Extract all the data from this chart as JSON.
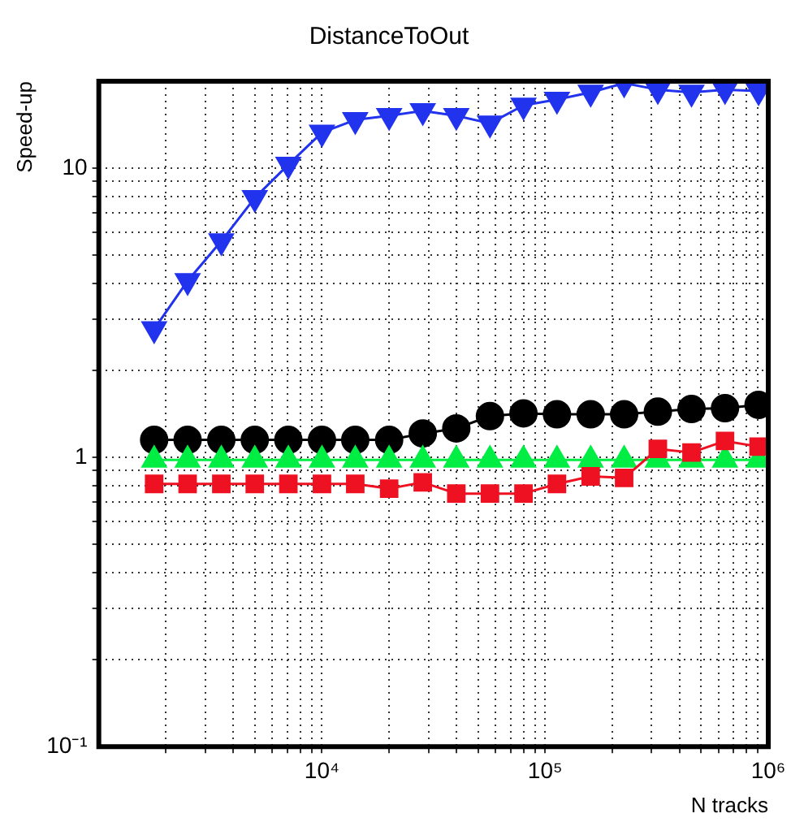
{
  "chart_data": {
    "type": "line",
    "title": "DistanceToOut",
    "xlabel": "N tracks",
    "ylabel": "Speed-up",
    "log": "xy",
    "grid": true,
    "line_style": "solid",
    "legend": false,
    "xlim": [
      1000,
      1000000
    ],
    "xticks": [
      {
        "value": 2000,
        "label": null
      },
      {
        "value": 3000,
        "label": null
      },
      {
        "value": 4000,
        "label": null
      },
      {
        "value": 5000,
        "label": null
      },
      {
        "value": 6000,
        "label": null
      },
      {
        "value": 7000,
        "label": null
      },
      {
        "value": 8000,
        "label": null
      },
      {
        "value": 9000,
        "label": null
      },
      {
        "value": 10000,
        "label": "10⁴"
      },
      {
        "value": 20000,
        "label": null
      },
      {
        "value": 30000,
        "label": null
      },
      {
        "value": 40000,
        "label": null
      },
      {
        "value": 50000,
        "label": null
      },
      {
        "value": 60000,
        "label": null
      },
      {
        "value": 70000,
        "label": null
      },
      {
        "value": 80000,
        "label": null
      },
      {
        "value": 90000,
        "label": null
      },
      {
        "value": 100000,
        "label": "10⁵"
      },
      {
        "value": 200000,
        "label": null
      },
      {
        "value": 300000,
        "label": null
      },
      {
        "value": 400000,
        "label": null
      },
      {
        "value": 500000,
        "label": null
      },
      {
        "value": 600000,
        "label": null
      },
      {
        "value": 700000,
        "label": null
      },
      {
        "value": 800000,
        "label": null
      },
      {
        "value": 900000,
        "label": null
      },
      {
        "value": 1000000,
        "label": "10⁶"
      }
    ],
    "ylim": [
      0.1,
      20
    ],
    "yticks": [
      {
        "value": 0.1,
        "label": "10⁻¹"
      },
      {
        "value": 0.2,
        "label": null
      },
      {
        "value": 0.3,
        "label": null
      },
      {
        "value": 0.4,
        "label": null
      },
      {
        "value": 0.5,
        "label": null
      },
      {
        "value": 0.6,
        "label": null
      },
      {
        "value": 0.7,
        "label": null
      },
      {
        "value": 0.8,
        "label": null
      },
      {
        "value": 0.9,
        "label": null
      },
      {
        "value": 1,
        "label": "1"
      },
      {
        "value": 2,
        "label": null
      },
      {
        "value": 3,
        "label": null
      },
      {
        "value": 4,
        "label": null
      },
      {
        "value": 5,
        "label": null
      },
      {
        "value": 6,
        "label": null
      },
      {
        "value": 7,
        "label": null
      },
      {
        "value": 8,
        "label": null
      },
      {
        "value": 9,
        "label": null
      },
      {
        "value": 10,
        "label": "10"
      }
    ],
    "x": [
      1770,
      2500,
      3540,
      5000,
      7070,
      10000,
      14100,
      20000,
      28300,
      40000,
      56600,
      80000,
      113000,
      160000,
      226000,
      320000,
      453000,
      640000,
      905000
    ],
    "series": [
      {
        "color": "#2233ee",
        "marker": "triangle-down",
        "values": [
          2.78,
          4.08,
          5.6,
          7.9,
          10.3,
          13.3,
          14.7,
          15.2,
          15.8,
          15.2,
          14.3,
          16.5,
          17.3,
          18.3,
          19.7,
          18.7,
          18.3,
          18.7,
          18.5
        ]
      },
      {
        "color": "#000000",
        "marker": "circle",
        "values": [
          1.15,
          1.15,
          1.15,
          1.15,
          1.15,
          1.15,
          1.15,
          1.15,
          1.21,
          1.26,
          1.39,
          1.42,
          1.41,
          1.41,
          1.41,
          1.44,
          1.47,
          1.48,
          1.52
        ]
      },
      {
        "color": "#00ee44",
        "marker": "triangle",
        "values": [
          0.98,
          0.98,
          0.98,
          0.98,
          0.98,
          0.98,
          0.98,
          0.98,
          0.98,
          0.98,
          0.98,
          0.98,
          0.98,
          0.98,
          0.98,
          0.98,
          0.98,
          0.98,
          0.98
        ]
      },
      {
        "color": "#ee1122",
        "marker": "square",
        "values": [
          0.81,
          0.81,
          0.81,
          0.81,
          0.81,
          0.81,
          0.81,
          0.78,
          0.82,
          0.75,
          0.75,
          0.75,
          0.81,
          0.86,
          0.85,
          1.07,
          1.04,
          1.14,
          1.09
        ]
      }
    ]
  }
}
